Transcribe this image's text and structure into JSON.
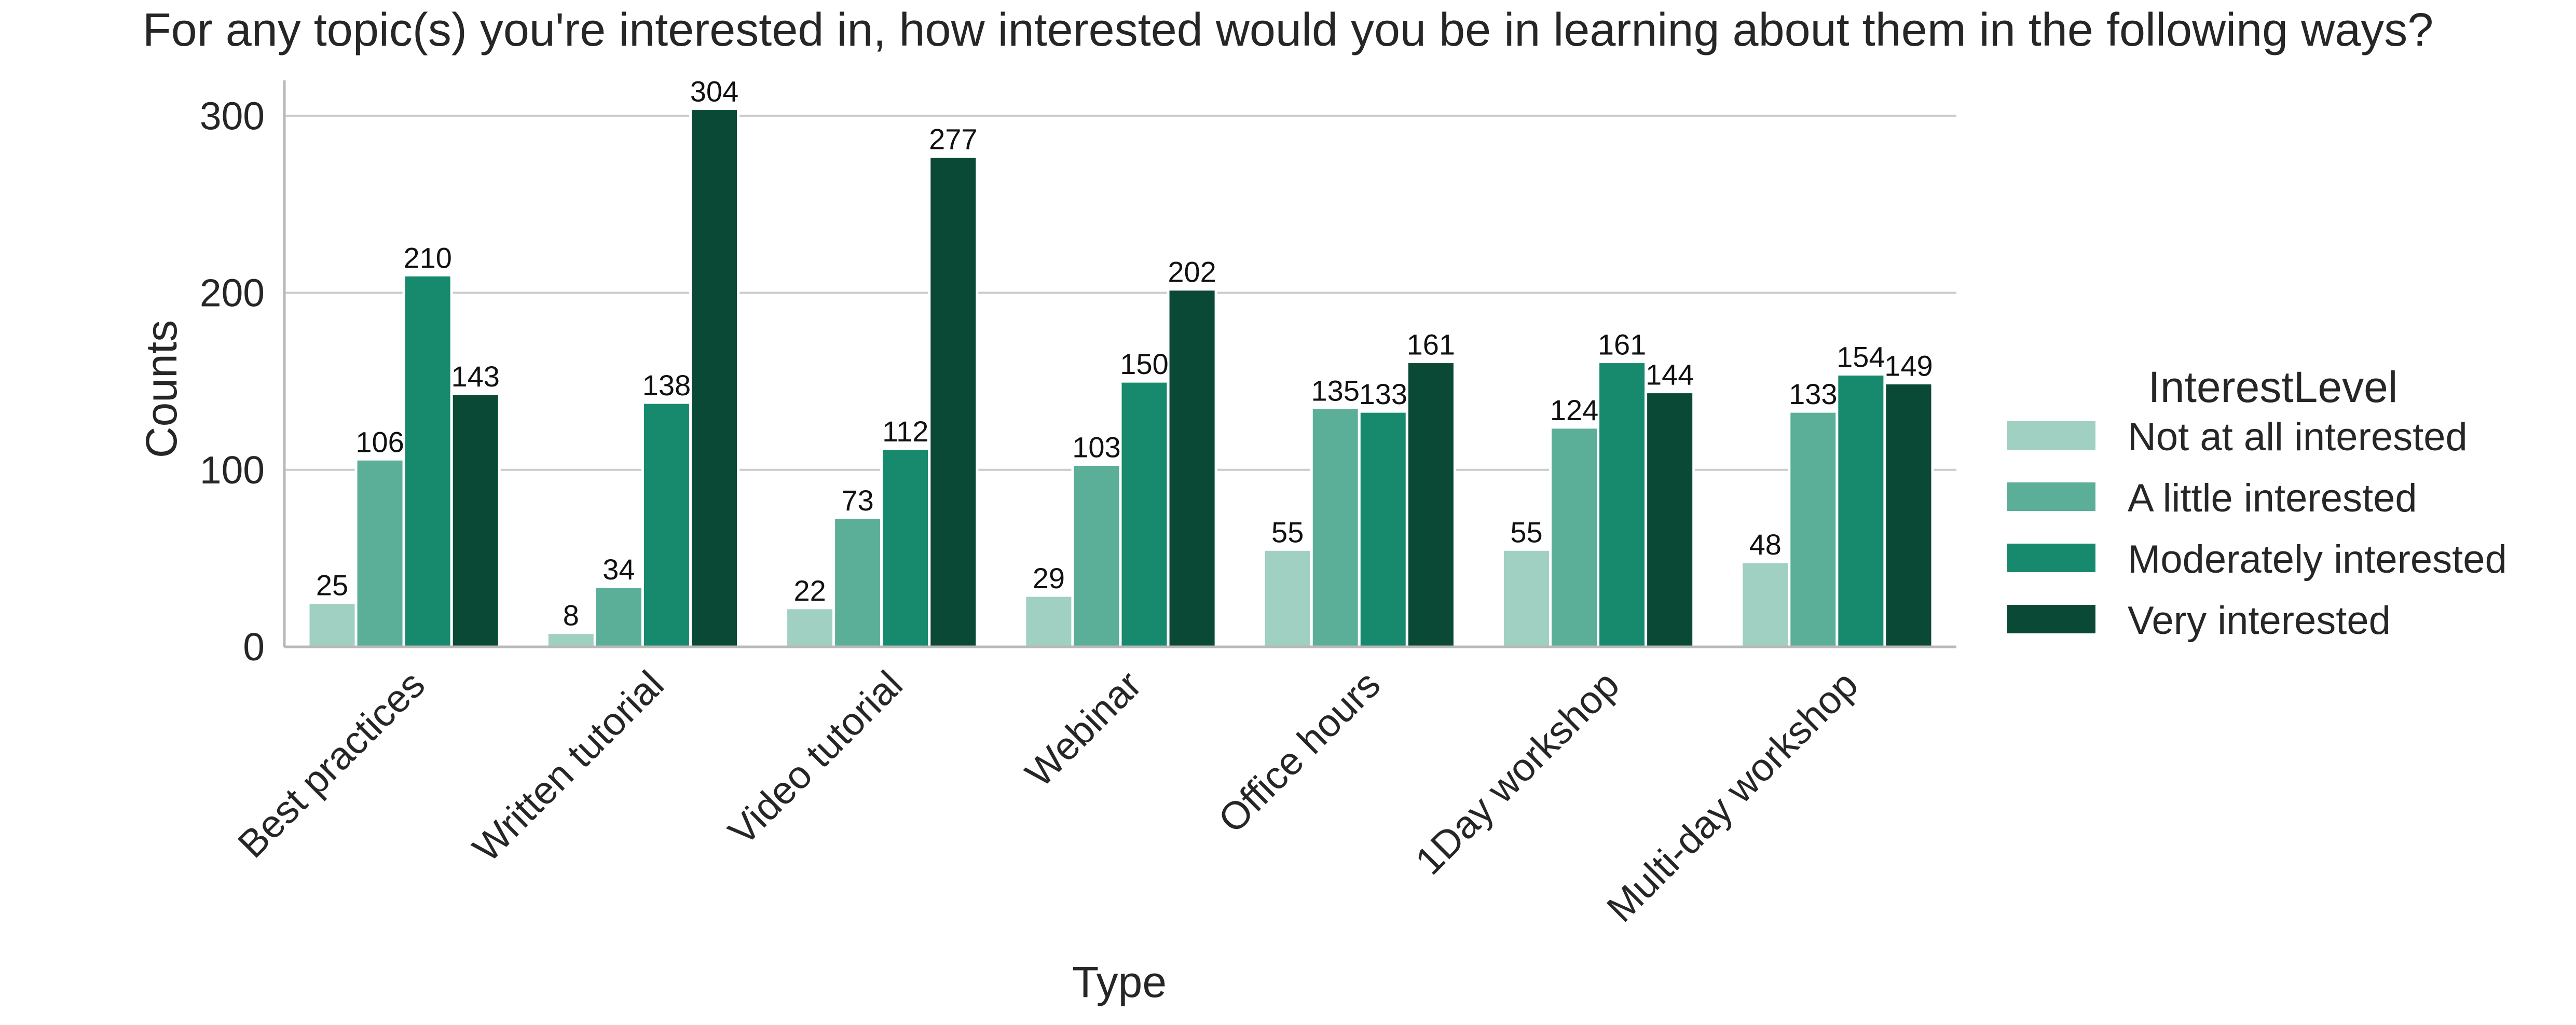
{
  "chart_data": {
    "type": "bar",
    "title": "For any topic(s) you're interested in, how interested would you be in learning about them in the following ways?",
    "xlabel": "Type",
    "ylabel": "Counts",
    "ylim": [
      0,
      320
    ],
    "yticks": [
      0,
      100,
      200,
      300
    ],
    "ytick_labels": [
      "0",
      "100",
      "200",
      "300"
    ],
    "grid": "horizontal",
    "legend": {
      "title": "InterestLevel",
      "placement": "right"
    },
    "categories": [
      "Best practices",
      "Written tutorial",
      "Video tutorial",
      "Webinar",
      "Office hours",
      "1Day workshop",
      "Multi-day workshop"
    ],
    "series": [
      {
        "name": "Not at all interested",
        "color": "#9fd0c1",
        "values": [
          25,
          8,
          22,
          29,
          55,
          55,
          48
        ],
        "labels": [
          "25",
          "8",
          "22",
          "29",
          "55",
          "55",
          "48"
        ]
      },
      {
        "name": "A little interested",
        "color": "#5bae97",
        "values": [
          106,
          34,
          73,
          103,
          135,
          124,
          133
        ],
        "labels": [
          "106",
          "34",
          "73",
          "103",
          "135",
          "124",
          "133"
        ]
      },
      {
        "name": "Moderately interested",
        "color": "#178a6d",
        "values": [
          210,
          138,
          112,
          150,
          133,
          161,
          154
        ],
        "labels": [
          "210",
          "138",
          "112",
          "150",
          "133",
          "161",
          "154"
        ]
      },
      {
        "name": "Very interested",
        "color": "#0b4937",
        "values": [
          143,
          304,
          277,
          202,
          161,
          144,
          149
        ],
        "labels": [
          "143",
          "304",
          "277",
          "202",
          "161",
          "144",
          "149"
        ]
      }
    ]
  }
}
